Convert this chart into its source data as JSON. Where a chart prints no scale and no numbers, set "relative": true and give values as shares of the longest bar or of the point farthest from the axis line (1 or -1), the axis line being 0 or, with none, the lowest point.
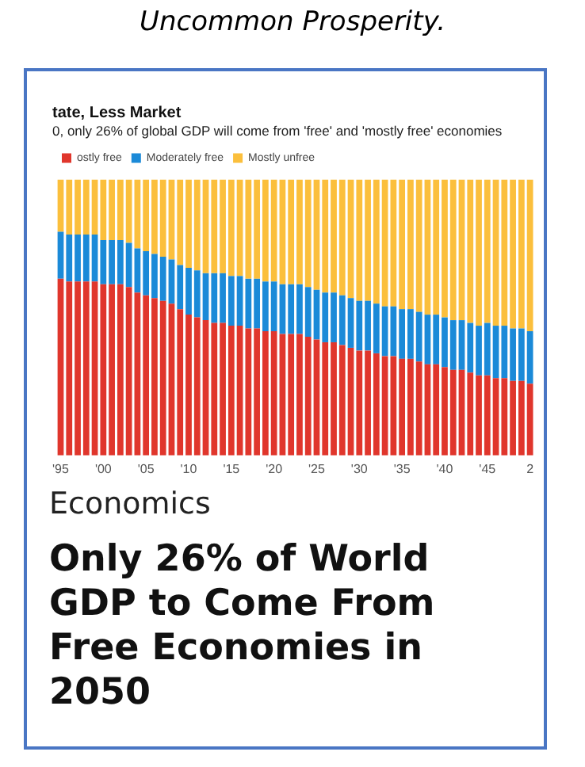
{
  "chart_data": {
    "type": "bar",
    "stacked": true,
    "relative": true,
    "title": "tate, Less Market",
    "subtitle": "0, only 26% of global GDP will come from 'free' and 'mostly free' economies",
    "legend": "top left",
    "grid": false,
    "annotations": [
      "Uncommon Prosperity.",
      "Economics",
      "Only 26% of World GDP to Come From Free Economies in 2050"
    ],
    "categories": [
      "'95",
      null,
      null,
      null,
      null,
      "'00",
      null,
      null,
      null,
      null,
      "'05",
      null,
      null,
      null,
      null,
      "'10",
      null,
      null,
      null,
      null,
      "'15",
      null,
      null,
      null,
      null,
      "'20",
      null,
      null,
      null,
      null,
      "'25",
      null,
      null,
      null,
      null,
      "'30",
      null,
      null,
      null,
      null,
      "'35",
      null,
      null,
      null,
      null,
      "'40",
      null,
      null,
      null,
      null,
      "'45",
      null,
      null,
      null,
      null,
      "2"
    ],
    "series": [
      {
        "name": "ostly free",
        "color": "#e0362c",
        "values": [
          0.64,
          0.63,
          0.63,
          0.63,
          0.63,
          0.62,
          0.62,
          0.62,
          0.61,
          0.59,
          0.58,
          0.57,
          0.56,
          0.55,
          0.53,
          0.51,
          0.5,
          0.49,
          0.48,
          0.48,
          0.47,
          0.47,
          0.46,
          0.46,
          0.45,
          0.45,
          0.44,
          0.44,
          0.44,
          0.43,
          0.42,
          0.41,
          0.41,
          0.4,
          0.39,
          0.38,
          0.38,
          0.37,
          0.36,
          0.36,
          0.35,
          0.35,
          0.34,
          0.33,
          0.33,
          0.32,
          0.31,
          0.31,
          0.3,
          0.29,
          0.29,
          0.28,
          0.28,
          0.27,
          0.27,
          0.26
        ]
      },
      {
        "name": "Moderately free",
        "color": "#1b8ad8",
        "values": [
          0.17,
          0.17,
          0.17,
          0.17,
          0.17,
          0.16,
          0.16,
          0.16,
          0.16,
          0.16,
          0.16,
          0.16,
          0.16,
          0.16,
          0.16,
          0.17,
          0.17,
          0.17,
          0.18,
          0.18,
          0.18,
          0.18,
          0.18,
          0.18,
          0.18,
          0.18,
          0.18,
          0.18,
          0.18,
          0.18,
          0.18,
          0.18,
          0.18,
          0.18,
          0.18,
          0.18,
          0.18,
          0.18,
          0.18,
          0.18,
          0.18,
          0.18,
          0.18,
          0.18,
          0.18,
          0.18,
          0.18,
          0.18,
          0.18,
          0.18,
          0.19,
          0.19,
          0.19,
          0.19,
          0.19,
          0.19
        ]
      },
      {
        "name": "Mostly unfree",
        "color": "#fbbf3c",
        "values": [
          0.19,
          0.2,
          0.2,
          0.2,
          0.2,
          0.22,
          0.22,
          0.22,
          0.23,
          0.25,
          0.26,
          0.27,
          0.28,
          0.29,
          0.31,
          0.32,
          0.33,
          0.34,
          0.34,
          0.34,
          0.35,
          0.35,
          0.36,
          0.36,
          0.37,
          0.37,
          0.38,
          0.38,
          0.38,
          0.39,
          0.4,
          0.41,
          0.41,
          0.42,
          0.43,
          0.44,
          0.44,
          0.45,
          0.46,
          0.46,
          0.47,
          0.47,
          0.48,
          0.49,
          0.49,
          0.5,
          0.51,
          0.51,
          0.52,
          0.53,
          0.52,
          0.53,
          0.53,
          0.54,
          0.54,
          0.55
        ]
      }
    ]
  }
}
